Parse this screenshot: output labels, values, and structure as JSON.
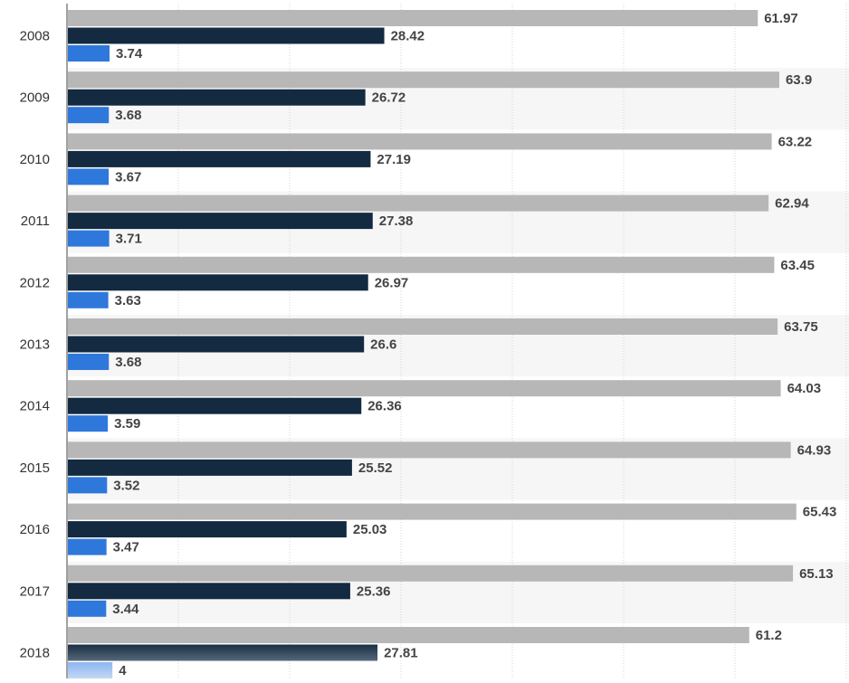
{
  "chart_data": {
    "type": "bar",
    "orientation": "horizontal",
    "categories": [
      "2008",
      "2009",
      "2010",
      "2011",
      "2012",
      "2013",
      "2014",
      "2015",
      "2016",
      "2017",
      "2018"
    ],
    "series": [
      {
        "values": [
          61.97,
          63.9,
          63.22,
          62.94,
          63.45,
          63.75,
          64.03,
          64.93,
          65.43,
          65.13,
          61.2
        ],
        "color": "#b7b7b7"
      },
      {
        "values": [
          28.42,
          26.72,
          27.19,
          27.38,
          26.97,
          26.6,
          26.36,
          25.52,
          25.03,
          25.36,
          27.81
        ],
        "color": "#132a40"
      },
      {
        "values": [
          3.74,
          3.68,
          3.67,
          3.71,
          3.63,
          3.68,
          3.59,
          3.52,
          3.47,
          3.44,
          4
        ],
        "color": "#2f78db"
      }
    ],
    "value_labels": [
      [
        "61.97",
        "63.9",
        "63.22",
        "62.94",
        "63.45",
        "63.75",
        "64.03",
        "64.93",
        "65.43",
        "65.13",
        "61.2"
      ],
      [
        "28.42",
        "26.72",
        "27.19",
        "27.38",
        "26.97",
        "26.6",
        "26.36",
        "25.52",
        "25.03",
        "25.36",
        "27.81"
      ],
      [
        "3.74",
        "3.68",
        "3.67",
        "3.71",
        "3.63",
        "3.68",
        "3.59",
        "3.52",
        "3.47",
        "3.44",
        "4"
      ]
    ],
    "xlim": [
      0,
      70
    ],
    "grid": true,
    "grid_style": "dotted vertical",
    "alternating_row_shading": true,
    "last_category_faded": true
  }
}
